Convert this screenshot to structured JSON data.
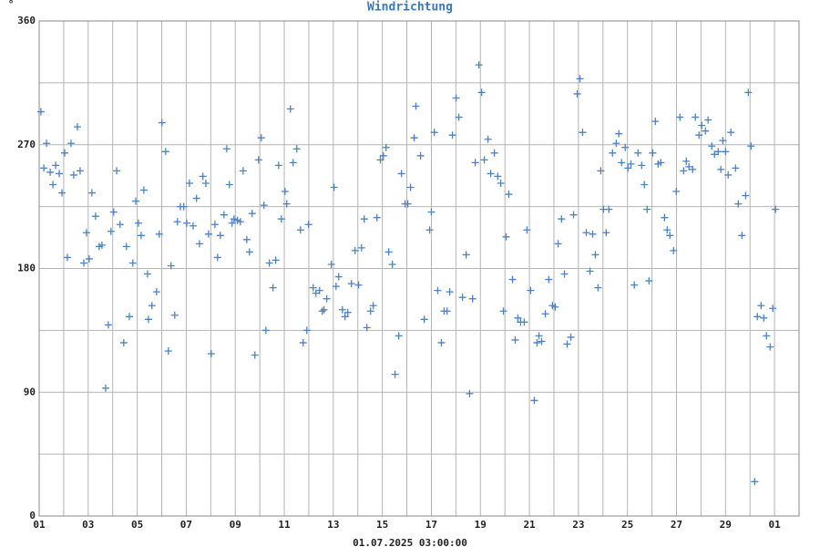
{
  "chart_data": {
    "type": "scatter",
    "title": "Windrichtung",
    "y_label": "°",
    "x_label": "01.07.2025 03:00:00",
    "color": "#4a82c3",
    "marker": "+",
    "grid": true,
    "grid_color": "#b4b4b4",
    "xlim": [
      0,
      31
    ],
    "xticks": [
      {
        "value": 0,
        "label": "01"
      },
      {
        "value": 2,
        "label": "03"
      },
      {
        "value": 4,
        "label": "05"
      },
      {
        "value": 6,
        "label": "07"
      },
      {
        "value": 8,
        "label": "09"
      },
      {
        "value": 10,
        "label": "11"
      },
      {
        "value": 12,
        "label": "13"
      },
      {
        "value": 14,
        "label": "15"
      },
      {
        "value": 16,
        "label": "17"
      },
      {
        "value": 18,
        "label": "19"
      },
      {
        "value": 20,
        "label": "21"
      },
      {
        "value": 22,
        "label": "23"
      },
      {
        "value": 24,
        "label": "25"
      },
      {
        "value": 26,
        "label": "27"
      },
      {
        "value": 28,
        "label": "29"
      },
      {
        "value": 30,
        "label": "01"
      }
    ],
    "xminor": [
      1,
      3,
      5,
      7,
      9,
      11,
      13,
      15,
      17,
      19,
      21,
      23,
      25,
      27,
      29,
      31
    ],
    "ylim": [
      0,
      360
    ],
    "yticks": [
      0,
      90,
      180,
      270,
      360
    ],
    "yminor": [
      45,
      135,
      225,
      315
    ],
    "x": [
      0.07,
      0.19,
      0.3,
      0.45,
      0.56,
      0.67,
      0.82,
      0.93,
      1.04,
      1.15,
      1.3,
      1.41,
      1.56,
      1.67,
      1.82,
      1.93,
      2.04,
      2.15,
      2.3,
      2.45,
      2.56,
      2.71,
      2.82,
      2.93,
      3.04,
      3.16,
      3.3,
      3.45,
      3.56,
      3.68,
      3.82,
      3.94,
      4.05,
      4.16,
      4.27,
      4.42,
      4.46,
      4.6,
      4.79,
      4.9,
      5.01,
      5.16,
      5.27,
      5.38,
      5.53,
      5.64,
      5.76,
      5.9,
      6.02,
      6.13,
      6.28,
      6.42,
      6.54,
      6.68,
      6.8,
      6.91,
      7.02,
      7.17,
      7.28,
      7.39,
      7.54,
      7.65,
      7.76,
      7.87,
      7.95,
      8.09,
      8.21,
      8.32,
      8.47,
      8.58,
      8.69,
      8.8,
      8.95,
      9.06,
      9.17,
      9.25,
      9.39,
      9.54,
      9.65,
      9.77,
      9.88,
      10.03,
      10.1,
      10.25,
      10.36,
      10.51,
      10.66,
      10.77,
      10.92,
      10.99,
      11.18,
      11.29,
      11.44,
      11.55,
      11.62,
      11.73,
      11.92,
      12.03,
      12.11,
      12.22,
      12.37,
      12.48,
      12.59,
      12.74,
      12.89,
      13.03,
      13.15,
      13.26,
      13.37,
      13.52,
      13.63,
      13.78,
      13.92,
      14.04,
      14.15,
      14.26,
      14.41,
      14.52,
      14.67,
      14.78,
      14.93,
      15.04,
      15.15,
      15.3,
      15.37,
      15.56,
      15.71,
      15.93,
      16.0,
      16.12,
      16.26,
      16.41,
      16.52,
      16.64,
      16.75,
      16.86,
      17.01,
      17.12,
      17.27,
      17.42,
      17.56,
      17.68,
      17.79,
      17.94,
      18.05,
      18.16,
      18.31,
      18.42,
      18.57,
      18.71,
      18.83,
      18.94,
      19.05,
      19.16,
      19.31,
      19.42,
      19.53,
      19.64,
      19.79,
      19.9,
      20.05,
      20.2,
      20.31,
      20.39,
      20.5,
      20.65,
      20.79,
      20.94,
      21.05,
      21.17,
      21.31,
      21.43,
      21.54,
      21.69,
      21.8,
      21.95,
      22.06,
      22.17,
      22.32,
      22.47,
      22.58,
      22.69,
      22.8,
      22.91,
      23.02,
      23.13,
      23.24,
      23.39,
      23.54,
      23.65,
      23.76,
      23.91,
      24.02,
      24.14,
      24.28,
      24.43,
      24.58,
      24.69,
      24.8,
      24.88,
      25.03,
      25.14,
      25.25,
      25.36,
      25.51,
      25.62,
      25.73,
      25.88,
      25.99,
      26.14,
      26.29,
      26.4,
      26.51,
      26.66,
      26.77,
      26.92,
      27.03,
      27.18,
      27.29,
      27.44,
      27.55,
      27.7,
      27.81,
      27.89,
      28.0,
      28.11,
      28.22,
      28.41,
      28.52,
      28.67,
      28.82,
      28.93,
      29.04,
      29.19,
      29.3,
      29.45,
      29.56,
      29.67,
      29.82,
      29.93,
      30.04
    ],
    "values": [
      294,
      253,
      271,
      250,
      241,
      255,
      249,
      235,
      264,
      188,
      271,
      248,
      283,
      251,
      184,
      206,
      187,
      235,
      218,
      196,
      197,
      93,
      139,
      207,
      221,
      251,
      212,
      126,
      196,
      145,
      184,
      229,
      213,
      204,
      237,
      176,
      143,
      153,
      163,
      205,
      286,
      265,
      120,
      182,
      146,
      214,
      225,
      225,
      213,
      242,
      211,
      231,
      198,
      247,
      242,
      205,
      118,
      212,
      188,
      204,
      219,
      267,
      241,
      213,
      216,
      215,
      214,
      251,
      201,
      192,
      220,
      117,
      259,
      275,
      226,
      135,
      184,
      166,
      186,
      255,
      216,
      236,
      227,
      296,
      257,
      267,
      208,
      126,
      135,
      212,
      166,
      162,
      164,
      149,
      150,
      158,
      183,
      239,
      167,
      174,
      150,
      145,
      148,
      169,
      193,
      168,
      195,
      216,
      137,
      149,
      153,
      217,
      259,
      262,
      268,
      192,
      183,
      103,
      131,
      249,
      227,
      227,
      239,
      275,
      298,
      262,
      143,
      208,
      221,
      279,
      164,
      126,
      149,
      149,
      163,
      277,
      304,
      290,
      159,
      190,
      89,
      158,
      257,
      328,
      308,
      259,
      274,
      249,
      264,
      247,
      242,
      149,
      203,
      234,
      172,
      128,
      144,
      141,
      141,
      208,
      164,
      84,
      126,
      131,
      127,
      147,
      172,
      153,
      152,
      198,
      216,
      176,
      125,
      130,
      219,
      307,
      318,
      279,
      206,
      178,
      205,
      190,
      166,
      251,
      223,
      206,
      223,
      264,
      271,
      278,
      257,
      268,
      253,
      256,
      168,
      264,
      255,
      241,
      223,
      171,
      264,
      287,
      256,
      257,
      217,
      208,
      204,
      193,
      236,
      290,
      251,
      258,
      254,
      252,
      290,
      277,
      284,
      280,
      288,
      269,
      263,
      265,
      252,
      273,
      265,
      248,
      279,
      253,
      227,
      204,
      233,
      308,
      269,
      25,
      145,
      153,
      144,
      131,
      123,
      151,
      223
    ]
  }
}
